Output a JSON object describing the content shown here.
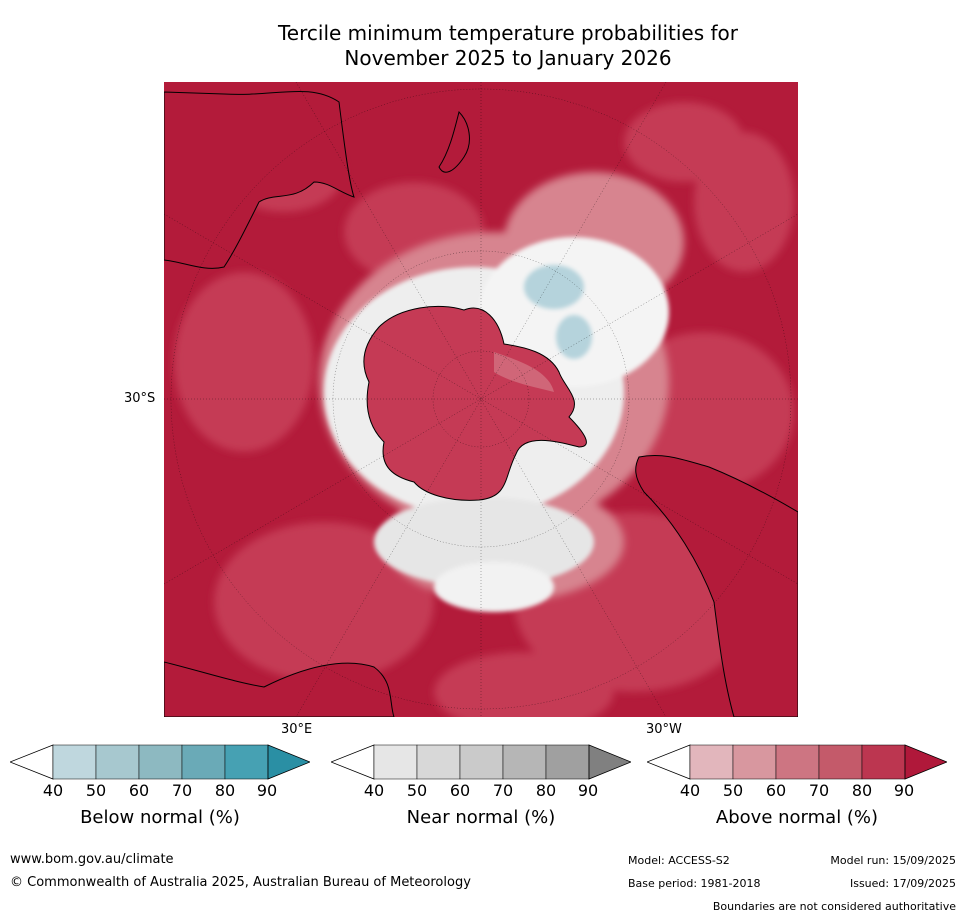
{
  "title": {
    "line1": "Tercile minimum temperature probabilities for",
    "line2": "November 2025 to January 2026"
  },
  "map": {
    "projection_labels": [
      "30°S",
      "30°E",
      "30°W"
    ],
    "colors": {
      "above_dark": "#b31b3a",
      "above_mid": "#c53a55",
      "above_light": "#d7848f",
      "near_light": "#e6e6e6",
      "below_light": "#b5d3dc"
    }
  },
  "colorbars": [
    {
      "label": "Below normal (%)",
      "ticks": [
        "40",
        "50",
        "60",
        "70",
        "80",
        "90"
      ],
      "colors": [
        "#ffffff",
        "#bfd7de",
        "#a7c8cf",
        "#8db9c1",
        "#6aaab7",
        "#46a1b3",
        "#2a8fa4"
      ]
    },
    {
      "label": "Near normal (%)",
      "ticks": [
        "40",
        "50",
        "60",
        "70",
        "80",
        "90"
      ],
      "colors": [
        "#ffffff",
        "#e6e6e6",
        "#d8d8d8",
        "#cacaca",
        "#b6b6b6",
        "#a0a0a0",
        "#808080"
      ]
    },
    {
      "label": "Above normal (%)",
      "ticks": [
        "40",
        "50",
        "60",
        "70",
        "80",
        "90"
      ],
      "colors": [
        "#ffffff",
        "#e2b6bc",
        "#d8979f",
        "#cd7582",
        "#c45a6a",
        "#bc3650",
        "#b0183a"
      ]
    }
  ],
  "footer": {
    "website": "www.bom.gov.au/climate",
    "copyright": "© Commonwealth of Australia 2025, Australian Bureau of Meteorology",
    "model": "Model: ACCESS-S2",
    "model_run": "Model run: 15/09/2025",
    "base_period": "Base period: 1981-2018",
    "issued": "Issued: 17/09/2025",
    "disclaimer": "Boundaries are not considered authoritative"
  }
}
